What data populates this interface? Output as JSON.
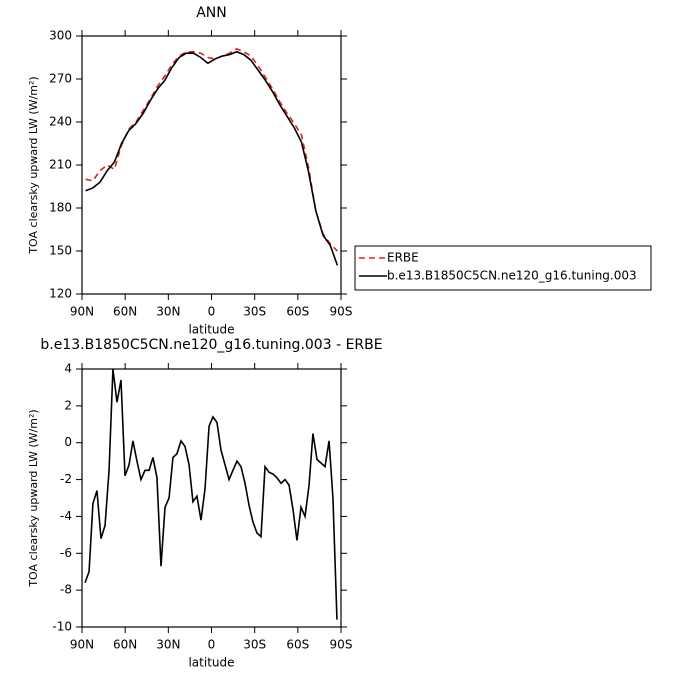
{
  "chart_data": [
    {
      "type": "line",
      "title": "ANN",
      "xlabel": "latitude",
      "ylabel": "TOA clearsky upward LW (W/m²)",
      "x": [
        87.5,
        82.5,
        77.5,
        72.5,
        67.5,
        62.5,
        57.5,
        52.5,
        47.5,
        42.5,
        37.5,
        32.5,
        27.5,
        22.5,
        17.5,
        12.5,
        7.5,
        2.5,
        -2.5,
        -7.5,
        -12.5,
        -17.5,
        -22.5,
        -27.5,
        -32.5,
        -37.5,
        -42.5,
        -47.5,
        -52.5,
        -57.5,
        -62.5,
        -67.5,
        -72.5,
        -77.5,
        -82.5,
        -87.5
      ],
      "series": [
        {
          "name": "ERBE",
          "color": "#e0201b",
          "line_style": "dashed",
          "values": [
            200,
            199,
            206,
            210,
            207,
            224,
            235,
            240,
            248,
            256,
            265,
            272,
            280,
            286,
            289,
            289,
            288,
            285,
            284,
            286,
            288,
            291,
            289,
            286,
            279,
            271,
            263,
            254,
            246,
            239,
            231,
            208,
            178,
            162,
            155,
            150
          ]
        },
        {
          "name": "b.e13.B1850C5CN.ne120_g16.tuning.003",
          "color": "#000000",
          "line_style": "solid",
          "values": [
            192,
            194,
            198,
            206,
            212,
            225,
            234,
            239,
            246,
            255,
            263,
            269,
            278,
            285,
            288,
            288,
            285,
            281,
            284,
            286,
            287,
            289,
            287,
            283,
            276,
            269,
            261,
            252,
            244,
            236,
            226,
            205,
            178,
            161,
            154,
            140
          ]
        }
      ],
      "xlim": [
        90,
        -90
      ],
      "xticks": [
        {
          "value": 90,
          "label": "90N"
        },
        {
          "value": 60,
          "label": "60N"
        },
        {
          "value": 30,
          "label": "30N"
        },
        0,
        {
          "value": -30,
          "label": "30S"
        },
        {
          "value": -60,
          "label": "60S"
        },
        {
          "value": -90,
          "label": "90S"
        }
      ],
      "ylim": [
        120,
        300
      ],
      "yticks": [
        120,
        150,
        180,
        210,
        240,
        270,
        300
      ],
      "legend": "right"
    },
    {
      "type": "line",
      "title": "b.e13.B1850C5CN.ne120_g16.tuning.003 - ERBE",
      "xlabel": "latitude",
      "ylabel": "TOA clearsky upward LW (W/m²)",
      "x": [
        87.9,
        85.1,
        82.4,
        79.6,
        76.8,
        74.0,
        71.2,
        68.5,
        65.7,
        62.9,
        60.1,
        57.3,
        54.6,
        51.8,
        49.0,
        46.2,
        43.4,
        40.7,
        37.9,
        35.1,
        32.3,
        29.5,
        26.8,
        24.0,
        21.2,
        18.4,
        15.6,
        12.9,
        10.1,
        7.3,
        4.5,
        1.7,
        -1.0,
        -3.8,
        -6.6,
        -9.4,
        -12.2,
        -14.9,
        -17.7,
        -20.5,
        -23.3,
        -26.1,
        -28.8,
        -31.6,
        -34.4,
        -37.2,
        -40.0,
        -42.7,
        -45.5,
        -48.3,
        -51.1,
        -53.9,
        -56.6,
        -59.4,
        -62.2,
        -65.0,
        -67.8,
        -70.5,
        -73.3,
        -76.1,
        -78.9,
        -81.7,
        -84.4,
        -87.2
      ],
      "values": [
        -7.6,
        -7,
        -3.3,
        -2.6,
        -5.2,
        -4.5,
        -1.5,
        4,
        2.2,
        3.4,
        -1.8,
        -1.2,
        0.1,
        -1.0,
        -2.0,
        -1.5,
        -1.5,
        -0.8,
        -1.9,
        -6.7,
        -3.5,
        -3.0,
        -0.8,
        -0.6,
        0.1,
        -0.2,
        -1.2,
        -3.2,
        -2.9,
        -4.2,
        -2.5,
        0.9,
        1.4,
        1.1,
        -0.4,
        -1.2,
        -2.0,
        -1.5,
        -1.0,
        -1.3,
        -2.2,
        -3.4,
        -4.3,
        -4.9,
        -5.1,
        -1.3,
        -1.6,
        -1.7,
        -1.9,
        -2.2,
        -2.0,
        -2.3,
        -3.6,
        -5.3,
        -3.5,
        -4.0,
        -2.3,
        0.5,
        -0.9,
        -1.1,
        -1.3,
        0.1,
        -3,
        -9.6
      ],
      "color": "#000000",
      "xlim": [
        90,
        -90
      ],
      "xticks": [
        {
          "value": 90,
          "label": "90N"
        },
        {
          "value": 60,
          "label": "60N"
        },
        {
          "value": 30,
          "label": "30N"
        },
        0,
        {
          "value": -30,
          "label": "30S"
        },
        {
          "value": -60,
          "label": "60S"
        },
        {
          "value": -90,
          "label": "90S"
        }
      ],
      "ylim": [
        -10,
        4
      ],
      "yticks": [
        -10,
        -8,
        -6,
        -4,
        -2,
        0,
        2,
        4
      ]
    }
  ]
}
